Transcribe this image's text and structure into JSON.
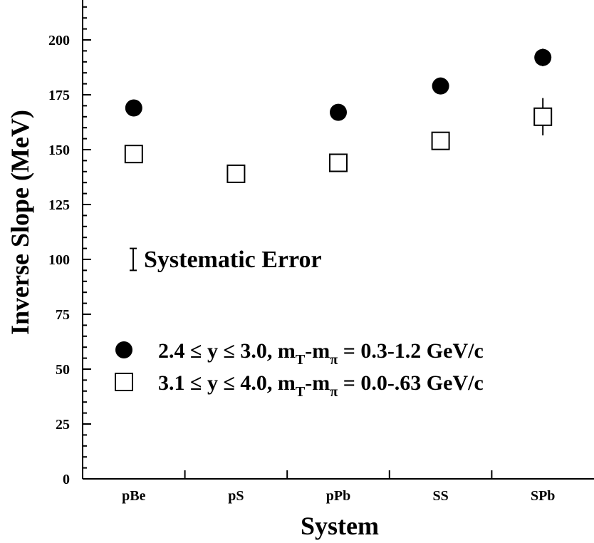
{
  "chart_data": {
    "type": "scatter",
    "xlabel": "System",
    "ylabel": "Inverse Slope (MeV)",
    "categories": [
      "pBe",
      "pS",
      "pPb",
      "SS",
      "SPb"
    ],
    "ylim": [
      0,
      215
    ],
    "yticks": [
      0,
      25,
      50,
      75,
      100,
      125,
      150,
      175,
      200
    ],
    "y_minor_step": 5,
    "grid": false,
    "legend_position": "lower-left",
    "annotation": "Systematic Error",
    "series": [
      {
        "name": "2.4 ≤ y ≤ 3.0, m_T-m_π = 0.3-1.2 GeV/c",
        "marker": "filled-circle",
        "label": {
          "pre": "2.4 ≤ y ≤ 3.0, m",
          "sub1": "T",
          "mid": "-m",
          "sub2": "π",
          "post": " = 0.3-1.2 GeV/c"
        },
        "points": [
          {
            "x": "pBe",
            "y": 169,
            "err": 1
          },
          {
            "x": "pPb",
            "y": 167,
            "err": 1
          },
          {
            "x": "SS",
            "y": 179,
            "err": 1
          },
          {
            "x": "SPb",
            "y": 192,
            "err": 4
          }
        ]
      },
      {
        "name": "3.1 ≤ y ≤ 4.0, m_T-m_π = 0.0-.63 GeV/c",
        "marker": "open-square",
        "label": {
          "pre": "3.1 ≤ y ≤ 4.0, m",
          "sub1": "T",
          "mid": "-m",
          "sub2": "π",
          "post": " = 0.0-.63 GeV/c"
        },
        "points": [
          {
            "x": "pBe",
            "y": 148,
            "err": 1
          },
          {
            "x": "pS",
            "y": 139,
            "err": 1
          },
          {
            "x": "pPb",
            "y": 144,
            "err": 1
          },
          {
            "x": "SS",
            "y": 154,
            "err": 4
          },
          {
            "x": "SPb",
            "y": 165,
            "err": 8.5
          }
        ]
      }
    ],
    "systematic_error_bar": {
      "y": 100,
      "half_height": 5
    }
  }
}
